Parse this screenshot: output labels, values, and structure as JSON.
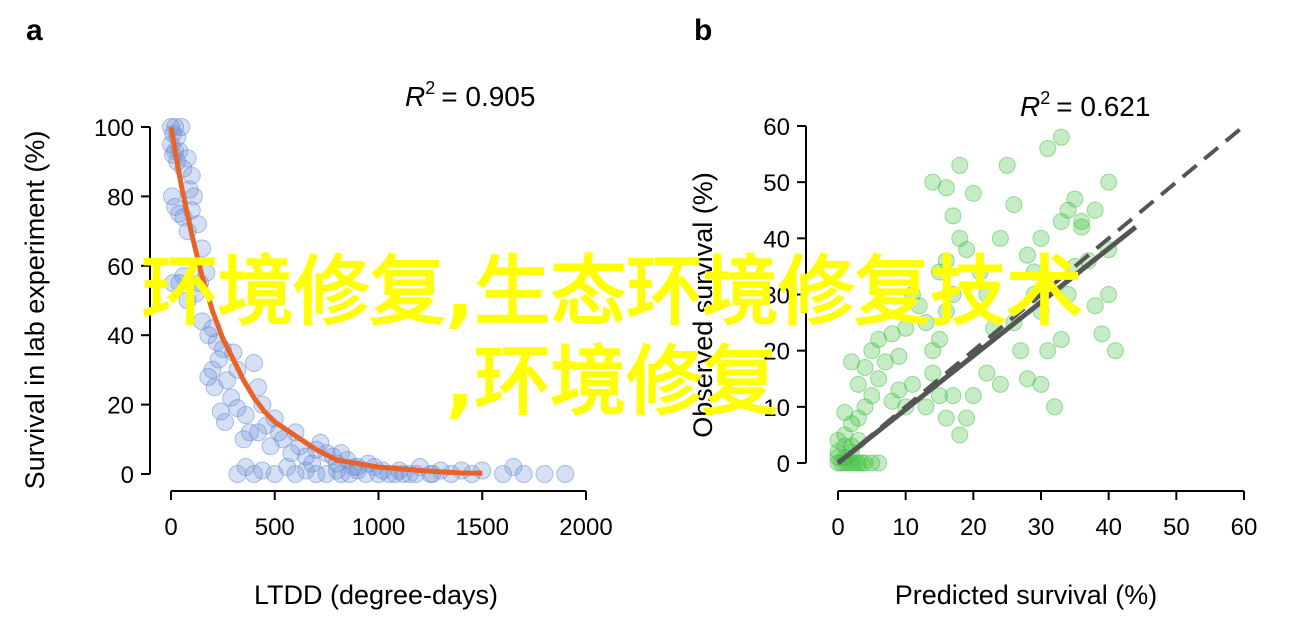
{
  "watermark": {
    "line1": "环境修复,生态环境修复技术",
    "line2": ",环境修复",
    "color": "#ffff00"
  },
  "chart_data": [
    {
      "panel": "a",
      "type": "scatter",
      "xlabel": "LTDD (degree-days)",
      "ylabel": "Survival in lab experiment (%)",
      "xlim": [
        -100,
        2000
      ],
      "ylim": [
        -5,
        100
      ],
      "xticks": [
        "0",
        "500",
        "1000",
        "1500",
        "2000"
      ],
      "yticks": [
        "0",
        "20",
        "40",
        "60",
        "80",
        "100"
      ],
      "r2_sup": "2",
      "r2_value": "= 0.905",
      "point_color": "#6b8fd6",
      "fit_color": "#e8632a",
      "series": [
        {
          "type": "scatter",
          "points": [
            [
              0,
              100
            ],
            [
              10,
              98
            ],
            [
              20,
              100
            ],
            [
              30,
              97
            ],
            [
              50,
              100
            ],
            [
              0,
              95
            ],
            [
              10,
              92
            ],
            [
              20,
              93
            ],
            [
              30,
              90
            ],
            [
              40,
              93
            ],
            [
              60,
              88
            ],
            [
              80,
              91
            ],
            [
              100,
              86
            ],
            [
              90,
              82
            ],
            [
              110,
              80
            ],
            [
              5,
              80
            ],
            [
              20,
              77
            ],
            [
              40,
              75
            ],
            [
              60,
              74
            ],
            [
              80,
              70
            ],
            [
              100,
              76
            ],
            [
              130,
              72
            ],
            [
              150,
              65
            ],
            [
              170,
              58
            ],
            [
              140,
              55
            ],
            [
              120,
              52
            ],
            [
              80,
              50
            ],
            [
              60,
              57
            ],
            [
              40,
              55
            ],
            [
              10,
              55
            ],
            [
              150,
              44
            ],
            [
              180,
              40
            ],
            [
              200,
              42
            ],
            [
              220,
              38
            ],
            [
              250,
              36
            ],
            [
              230,
              33
            ],
            [
              200,
              30
            ],
            [
              180,
              28
            ],
            [
              210,
              25
            ],
            [
              270,
              27
            ],
            [
              300,
              35
            ],
            [
              320,
              30
            ],
            [
              290,
              22
            ],
            [
              240,
              18
            ],
            [
              260,
              15
            ],
            [
              320,
              19
            ],
            [
              360,
              17
            ],
            [
              400,
              32
            ],
            [
              420,
              25
            ],
            [
              440,
              20
            ],
            [
              350,
              10
            ],
            [
              380,
              12
            ],
            [
              420,
              12
            ],
            [
              460,
              14
            ],
            [
              500,
              16
            ],
            [
              520,
              12
            ],
            [
              480,
              8
            ],
            [
              540,
              10
            ],
            [
              580,
              6
            ],
            [
              600,
              12
            ],
            [
              620,
              8
            ],
            [
              650,
              5
            ],
            [
              680,
              3
            ],
            [
              700,
              7
            ],
            [
              720,
              9
            ],
            [
              750,
              6
            ],
            [
              780,
              5
            ],
            [
              800,
              3
            ],
            [
              820,
              6
            ],
            [
              850,
              4
            ],
            [
              880,
              2
            ],
            [
              900,
              1
            ],
            [
              950,
              3
            ],
            [
              980,
              2
            ],
            [
              1020,
              1
            ],
            [
              1050,
              0
            ],
            [
              1100,
              1
            ],
            [
              1150,
              0
            ],
            [
              1200,
              2
            ],
            [
              1250,
              0
            ],
            [
              1300,
              1
            ],
            [
              1350,
              0
            ],
            [
              1400,
              1
            ],
            [
              1450,
              0
            ],
            [
              1500,
              1
            ],
            [
              1600,
              0
            ],
            [
              1650,
              2
            ],
            [
              1700,
              0
            ],
            [
              1800,
              0
            ],
            [
              1900,
              0
            ],
            [
              320,
              0
            ],
            [
              360,
              2
            ],
            [
              400,
              0
            ],
            [
              440,
              1
            ],
            [
              500,
              0
            ],
            [
              560,
              2
            ],
            [
              600,
              0
            ],
            [
              650,
              1
            ],
            [
              700,
              0
            ],
            [
              750,
              0
            ],
            [
              800,
              1
            ],
            [
              820,
              0
            ],
            [
              860,
              0
            ],
            [
              900,
              2
            ],
            [
              940,
              0
            ],
            [
              1000,
              0
            ],
            [
              1080,
              0
            ],
            [
              1120,
              0
            ],
            [
              1180,
              0
            ],
            [
              1260,
              0
            ]
          ]
        },
        {
          "type": "line",
          "name": "",
          "x": [
            0,
            50,
            100,
            150,
            200,
            250,
            300,
            350,
            400,
            450,
            500,
            600,
            700,
            800,
            900,
            1000,
            1100,
            1200,
            1300,
            1400,
            1500
          ],
          "y": [
            100,
            83,
            69,
            57,
            47,
            39,
            33,
            27,
            22,
            18,
            15,
            11,
            7,
            4,
            3,
            2,
            1.5,
            1,
            0.6,
            0.3,
            0.2
          ]
        }
      ]
    },
    {
      "panel": "b",
      "type": "scatter",
      "xlabel": "Predicted survival (%)",
      "ylabel": "Observed survival (%)",
      "xlim": [
        -2,
        60
      ],
      "ylim": [
        -5,
        60
      ],
      "xticks": [
        "0",
        "10",
        "20",
        "30",
        "40",
        "50",
        "60"
      ],
      "yticks": [
        "0",
        "10",
        "20",
        "30",
        "40",
        "50",
        "60"
      ],
      "r2_sup": "2",
      "r2_value": "= 0.621",
      "point_color": "#3fbf3f",
      "identity_line_color": "#555555",
      "fit_line_color": "#555555",
      "series": [
        {
          "type": "scatter",
          "points": [
            [
              0,
              0
            ],
            [
              0.5,
              0
            ],
            [
              1,
              0
            ],
            [
              1.5,
              0
            ],
            [
              2,
              0
            ],
            [
              2.5,
              0
            ],
            [
              3,
              0
            ],
            [
              3.5,
              0
            ],
            [
              4,
              0
            ],
            [
              5,
              0
            ],
            [
              6,
              0
            ],
            [
              0,
              1
            ],
            [
              1,
              1
            ],
            [
              2,
              2
            ],
            [
              0,
              2
            ],
            [
              1,
              3
            ],
            [
              2,
              3
            ],
            [
              0,
              4
            ],
            [
              1,
              5
            ],
            [
              3,
              4
            ],
            [
              2,
              7
            ],
            [
              3,
              8
            ],
            [
              1,
              9
            ],
            [
              4,
              10
            ],
            [
              5,
              12
            ],
            [
              3,
              14
            ],
            [
              6,
              15
            ],
            [
              4,
              17
            ],
            [
              2,
              18
            ],
            [
              5,
              20
            ],
            [
              6,
              22
            ],
            [
              8,
              11
            ],
            [
              9,
              13
            ],
            [
              7,
              18
            ],
            [
              8,
              23
            ],
            [
              10,
              10
            ],
            [
              11,
              14
            ],
            [
              9,
              19
            ],
            [
              10,
              24
            ],
            [
              12,
              28
            ],
            [
              11,
              30
            ],
            [
              13,
              25
            ],
            [
              14,
              20
            ],
            [
              13,
              10
            ],
            [
              15,
              12
            ],
            [
              14,
              16
            ],
            [
              15,
              22
            ],
            [
              16,
              27
            ],
            [
              17,
              30
            ],
            [
              15,
              34
            ],
            [
              16,
              36
            ],
            [
              18,
              40
            ],
            [
              17,
              44
            ],
            [
              14,
              50
            ],
            [
              16,
              49
            ],
            [
              18,
              53
            ],
            [
              20,
              48
            ],
            [
              21,
              34
            ],
            [
              19,
              38
            ],
            [
              22,
              30
            ],
            [
              23,
              24
            ],
            [
              24,
              40
            ],
            [
              25,
              53
            ],
            [
              26,
              46
            ],
            [
              28,
              37
            ],
            [
              29,
              30
            ],
            [
              30,
              27
            ],
            [
              31,
              20
            ],
            [
              30,
              14
            ],
            [
              32,
              10
            ],
            [
              33,
              22
            ],
            [
              34,
              30
            ],
            [
              35,
              35
            ],
            [
              36,
              43
            ],
            [
              35,
              47
            ],
            [
              36,
              42
            ],
            [
              37,
              36
            ],
            [
              38,
              28
            ],
            [
              39,
              23
            ],
            [
              40,
              38
            ],
            [
              40,
              50
            ],
            [
              40,
              30
            ],
            [
              41,
              20
            ],
            [
              38,
              45
            ],
            [
              34,
              45
            ],
            [
              33,
              43
            ],
            [
              31,
              56
            ],
            [
              33,
              58
            ],
            [
              30,
              40
            ],
            [
              29,
              34
            ],
            [
              28,
              15
            ],
            [
              27,
              20
            ],
            [
              26,
              25
            ],
            [
              24,
              14
            ],
            [
              22,
              16
            ],
            [
              20,
              12
            ],
            [
              19,
              8
            ],
            [
              18,
              5
            ],
            [
              17,
              12
            ],
            [
              16,
              8
            ]
          ]
        },
        {
          "type": "line",
          "name": "",
          "x": [
            0,
            60
          ],
          "y": [
            0,
            60
          ]
        },
        {
          "type": "line",
          "name": "",
          "x": [
            0,
            44
          ],
          "y": [
            0,
            42
          ]
        }
      ]
    }
  ]
}
